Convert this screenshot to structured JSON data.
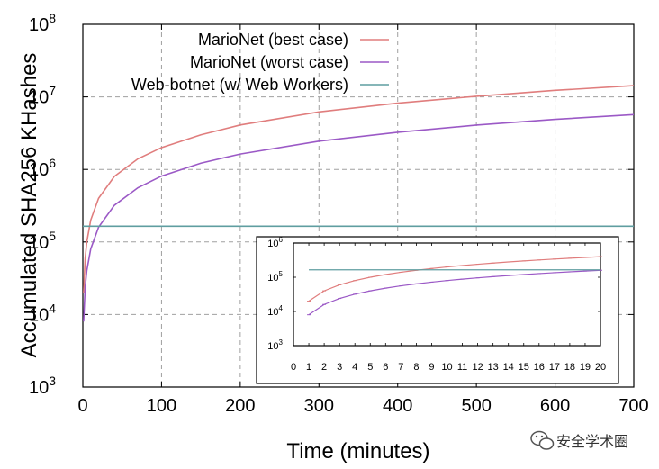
{
  "chart_data": [
    {
      "type": "line",
      "title": "",
      "xlabel": "Time (minutes)",
      "ylabel": "Accumulated SHA256 KHashes",
      "xlim": [
        0,
        700
      ],
      "ylim": [
        1000,
        100000000
      ],
      "yscale": "log",
      "grid": true,
      "legend_position": "top-right",
      "x_ticks": [
        "0",
        "100",
        "200",
        "300",
        "400",
        "500",
        "600",
        "700"
      ],
      "y_ticks": [
        {
          "base": "10",
          "exp": "3"
        },
        {
          "base": "10",
          "exp": "4"
        },
        {
          "base": "10",
          "exp": "5"
        },
        {
          "base": "10",
          "exp": "6"
        },
        {
          "base": "10",
          "exp": "7"
        },
        {
          "base": "10",
          "exp": "8"
        }
      ],
      "series": [
        {
          "name": "MarioNet (best case)",
          "color": "#e07d7d",
          "x": [
            1,
            3,
            5,
            10,
            20,
            40,
            70,
            100,
            150,
            200,
            300,
            400,
            500,
            600,
            700
          ],
          "y": [
            20000,
            60000,
            100000,
            200000,
            400000,
            800000,
            1400000,
            2000000,
            3000000,
            4100000,
            6200000,
            8200000,
            10200000,
            12300000,
            14300000
          ]
        },
        {
          "name": "MarioNet (worst case)",
          "color": "#9b59c6",
          "x": [
            1,
            3,
            5,
            10,
            20,
            40,
            70,
            100,
            150,
            200,
            300,
            400,
            500,
            600,
            700
          ],
          "y": [
            8000,
            24000,
            40000,
            80000,
            160000,
            320000,
            560000,
            810000,
            1220000,
            1630000,
            2450000,
            3250000,
            4080000,
            4900000,
            5700000
          ]
        },
        {
          "name": "Web-botnet (w/ Web Workers)",
          "color": "#5f9ea0",
          "x": [
            0,
            700
          ],
          "y": [
            165000,
            165000
          ]
        }
      ]
    },
    {
      "type": "line",
      "title": "",
      "xlabel": "",
      "ylabel": "",
      "xlim": [
        0,
        20
      ],
      "ylim": [
        1000,
        1000000
      ],
      "yscale": "log",
      "grid": false,
      "x_ticks": [
        "0",
        "1",
        "2",
        "3",
        "4",
        "5",
        "6",
        "7",
        "8",
        "9",
        "10",
        "11",
        "12",
        "13",
        "14",
        "15",
        "16",
        "17",
        "18",
        "19",
        "20"
      ],
      "y_ticks": [
        {
          "base": "10",
          "exp": "3"
        },
        {
          "base": "10",
          "exp": "4"
        },
        {
          "base": "10",
          "exp": "5"
        },
        {
          "base": "10",
          "exp": "6"
        }
      ],
      "series": [
        {
          "name": "MarioNet (best case)",
          "color": "#e07d7d",
          "x": [
            1,
            2,
            3,
            4,
            5,
            6,
            7,
            8,
            9,
            10,
            11,
            12,
            13,
            14,
            15,
            16,
            17,
            18,
            19,
            20
          ],
          "y": [
            20000,
            40000,
            60000,
            80000,
            100000,
            120000,
            140000,
            160000,
            180000,
            200000,
            220000,
            240000,
            260000,
            280000,
            300000,
            320000,
            340000,
            360000,
            380000,
            400000
          ]
        },
        {
          "name": "MarioNet (worst case)",
          "color": "#9b59c6",
          "x": [
            1,
            2,
            3,
            4,
            5,
            6,
            7,
            8,
            9,
            10,
            11,
            12,
            13,
            14,
            15,
            16,
            17,
            18,
            19,
            20
          ],
          "y": [
            8000,
            16000,
            24000,
            32000,
            40000,
            48000,
            56000,
            64000,
            72000,
            80000,
            88000,
            96000,
            104000,
            112000,
            120000,
            128000,
            136000,
            144000,
            152000,
            160000
          ]
        },
        {
          "name": "Web-botnet (w/ Web Workers)",
          "color": "#5f9ea0",
          "x": [
            1,
            20
          ],
          "y": [
            165000,
            165000
          ]
        }
      ]
    }
  ],
  "watermark": {
    "text": "安全学术圈",
    "icon": "wechat-icon"
  }
}
